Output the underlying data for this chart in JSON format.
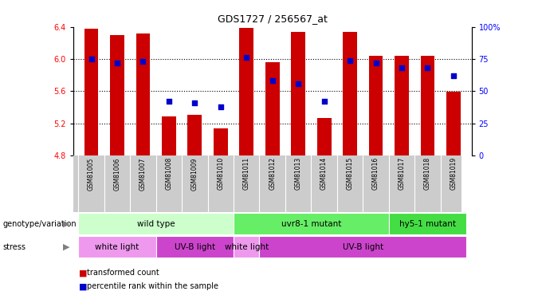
{
  "title": "GDS1727 / 256567_at",
  "samples": [
    "GSM81005",
    "GSM81006",
    "GSM81007",
    "GSM81008",
    "GSM81009",
    "GSM81010",
    "GSM81011",
    "GSM81012",
    "GSM81013",
    "GSM81014",
    "GSM81015",
    "GSM81016",
    "GSM81017",
    "GSM81018",
    "GSM81019"
  ],
  "bar_values": [
    6.38,
    6.3,
    6.32,
    5.29,
    5.31,
    5.14,
    6.39,
    5.96,
    6.34,
    5.27,
    6.34,
    6.04,
    6.04,
    6.04,
    5.59
  ],
  "dot_values": [
    75,
    72,
    73,
    42,
    41,
    38,
    76,
    58,
    56,
    42,
    74,
    72,
    68,
    68,
    62
  ],
  "ylim_left": [
    4.8,
    6.4
  ],
  "ylim_right": [
    0,
    100
  ],
  "yticks_left": [
    4.8,
    5.2,
    5.6,
    6.0,
    6.4
  ],
  "yticks_right": [
    0,
    25,
    50,
    75,
    100
  ],
  "ytick_labels_right": [
    "0",
    "25",
    "50",
    "75",
    "100%"
  ],
  "hlines": [
    6.0,
    5.6,
    5.2
  ],
  "bar_color": "#cc0000",
  "dot_color": "#0000cc",
  "bar_bottom": 4.8,
  "genotype_groups": [
    {
      "label": "wild type",
      "start": 0,
      "end": 6,
      "color": "#ccffcc"
    },
    {
      "label": "uvr8-1 mutant",
      "start": 6,
      "end": 12,
      "color": "#66ee66"
    },
    {
      "label": "hy5-1 mutant",
      "start": 12,
      "end": 15,
      "color": "#44dd44"
    }
  ],
  "stress_groups": [
    {
      "label": "white light",
      "start": 0,
      "end": 3,
      "color": "#ee99ee"
    },
    {
      "label": "UV-B light",
      "start": 3,
      "end": 6,
      "color": "#cc44cc"
    },
    {
      "label": "white light",
      "start": 6,
      "end": 7,
      "color": "#ee99ee"
    },
    {
      "label": "UV-B light",
      "start": 7,
      "end": 15,
      "color": "#cc44cc"
    }
  ],
  "sample_bg_color": "#cccccc",
  "bg_color": "#ffffff"
}
